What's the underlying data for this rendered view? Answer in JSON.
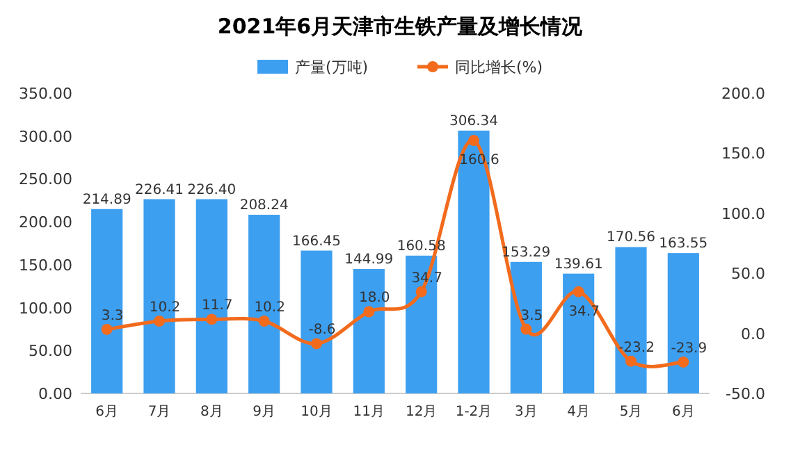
{
  "chart_data": {
    "type": "bar",
    "title": "2021年6月天津市生铁产量及增长情况",
    "categories": [
      "6月",
      "7月",
      "8月",
      "9月",
      "10月",
      "11月",
      "12月",
      "1-2月",
      "3月",
      "4月",
      "5月",
      "6月"
    ],
    "series": [
      {
        "name": "产量(万吨)",
        "color": "#3d9ff0",
        "values": [
          214.89,
          226.41,
          226.4,
          208.24,
          166.45,
          144.99,
          160.58,
          306.34,
          153.29,
          139.61,
          170.56,
          163.55
        ],
        "value_labels": [
          "214.89",
          "226.41",
          "226.40",
          "208.24",
          "166.45",
          "144.99",
          "160.58",
          "306.34",
          "153.29",
          "139.61",
          "170.56",
          "163.55"
        ]
      },
      {
        "type": "line",
        "name": "同比增长(%)",
        "color": "#f26b1d",
        "axis": "y2",
        "marker": "circle",
        "values": [
          3.3,
          10.2,
          11.7,
          10.2,
          -8.6,
          18.0,
          34.7,
          160.6,
          3.5,
          34.7,
          -23.2,
          -23.9
        ],
        "value_labels": [
          "3.3",
          "10.2",
          "11.7",
          "10.2",
          "-8.6",
          "18.0",
          "34.7",
          "160.6",
          "3.5",
          "34.7",
          "-23.2",
          "-23.9"
        ]
      }
    ],
    "ylim": [
      0,
      350
    ],
    "yticks": [
      {
        "value": 0,
        "label": "0.00"
      },
      {
        "value": 50,
        "label": "50.00"
      },
      {
        "value": 100,
        "label": "100.00"
      },
      {
        "value": 150,
        "label": "150.00"
      },
      {
        "value": 200,
        "label": "200.00"
      },
      {
        "value": 250,
        "label": "250.00"
      },
      {
        "value": 300,
        "label": "300.00"
      },
      {
        "value": 350,
        "label": "350.00"
      }
    ],
    "y2lim": [
      -50,
      200
    ],
    "y2ticks": [
      {
        "value": -50,
        "label": "-50.0"
      },
      {
        "value": 0,
        "label": "0.0"
      },
      {
        "value": 50,
        "label": "50.0"
      },
      {
        "value": 100,
        "label": "100.0"
      },
      {
        "value": 150,
        "label": "150.0"
      },
      {
        "value": 200,
        "label": "200.0"
      }
    ],
    "legend": "top"
  }
}
